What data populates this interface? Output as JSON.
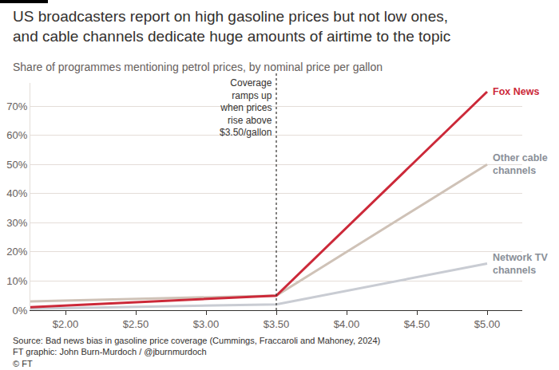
{
  "chart_data": {
    "type": "line",
    "title": [
      "US broadcasters report on high gasoline prices but not low ones,",
      "and cable channels dedicate huge amounts of airtime to the topic"
    ],
    "subtitle": "Share of programmes mentioning petrol prices, by nominal price per gallon",
    "source": [
      "Source: Bad news bias in gasoline price coverage (Cummings, Fraccaroli and Mahoney, 2024)",
      "FT graphic: John Burn-Murdoch / @jburnmurdoch",
      "© FT"
    ],
    "x": [
      1.75,
      3.5,
      5.0
    ],
    "series": [
      {
        "name": "Network TV channels",
        "color": "#c9ccd3",
        "values": [
          0.5,
          2,
          16
        ]
      },
      {
        "name": "Other cable channels",
        "color": "#cfc2b7",
        "values": [
          3,
          5,
          50
        ]
      },
      {
        "name": "Fox News",
        "color": "#cc2939",
        "values": [
          1,
          5,
          75
        ]
      }
    ],
    "xlim": [
      1.75,
      5.25
    ],
    "ylim": [
      0,
      78
    ],
    "xticks": [
      {
        "value": 2,
        "label": "$2.00"
      },
      {
        "value": 2.5,
        "label": "$2.50"
      },
      {
        "value": 3,
        "label": "$3.00"
      },
      {
        "value": 3.5,
        "label": "$3.50"
      },
      {
        "value": 4,
        "label": "$4.00"
      },
      {
        "value": 4.5,
        "label": "$4.50"
      },
      {
        "value": 5,
        "label": "$5.00"
      }
    ],
    "yticks": [
      {
        "value": 0,
        "label": "0%"
      },
      {
        "value": 10,
        "label": "10%"
      },
      {
        "value": 20,
        "label": "20%"
      },
      {
        "value": 30,
        "label": "30%"
      },
      {
        "value": 40,
        "label": "40%"
      },
      {
        "value": 50,
        "label": "50%"
      },
      {
        "value": 60,
        "label": "60%"
      },
      {
        "value": 70,
        "label": "70%"
      }
    ],
    "grid": "y",
    "annotations": [
      {
        "text": [
          "Coverage",
          "ramps up",
          "when prices",
          "rise above",
          "$3.50/gallon"
        ],
        "x": 3.5
      }
    ]
  }
}
